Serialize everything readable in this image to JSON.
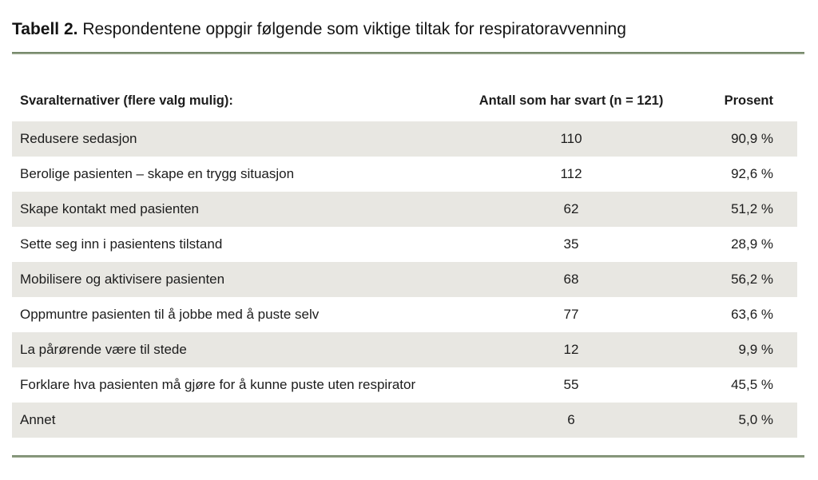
{
  "title": {
    "label": "Tabell 2.",
    "text": "Respondentene oppgir følgende som viktige tiltak for respiratoravvenning"
  },
  "table": {
    "columns": [
      "Svaralternativer (flere valg mulig):",
      "Antall som har svart (n = 121)",
      "Prosent"
    ],
    "rows": [
      {
        "alternativ": "Redusere sedasjon",
        "antall": "110",
        "prosent": "90,9 %"
      },
      {
        "alternativ": "Berolige pasienten – skape en trygg situasjon",
        "antall": "112",
        "prosent": "92,6 %"
      },
      {
        "alternativ": "Skape kontakt med pasienten",
        "antall": "62",
        "prosent": "51,2 %"
      },
      {
        "alternativ": "Sette seg inn i pasientens tilstand",
        "antall": "35",
        "prosent": "28,9 %"
      },
      {
        "alternativ": "Mobilisere og aktivisere pasienten",
        "antall": "68",
        "prosent": "56,2 %"
      },
      {
        "alternativ": "Oppmuntre pasienten til å jobbe med å puste selv",
        "antall": "77",
        "prosent": "63,6 %"
      },
      {
        "alternativ": "La pårørende være til stede",
        "antall": "12",
        "prosent": "9,9 %"
      },
      {
        "alternativ": "Forklare hva pasienten må gjøre for å kunne puste uten respirator",
        "antall": "55",
        "prosent": "45,5 %"
      },
      {
        "alternativ": "Annet",
        "antall": "6",
        "prosent": "5,0 %"
      }
    ]
  },
  "chart_data": {
    "type": "table",
    "title": "Tabell 2. Respondentene oppgir følgende som viktige tiltak for respiratoravvenning",
    "columns": [
      "Svaralternativer (flere valg mulig):",
      "Antall som har svart (n = 121)",
      "Prosent"
    ],
    "n_total": 121,
    "categories": [
      "Redusere sedasjon",
      "Berolige pasienten – skape en trygg situasjon",
      "Skape kontakt med pasienten",
      "Sette seg inn i pasientens tilstand",
      "Mobilisere og aktivisere pasienten",
      "Oppmuntre pasienten til å jobbe med å puste selv",
      "La pårørende være til stede",
      "Forklare hva pasienten må gjøre for å kunne puste uten respirator",
      "Annet"
    ],
    "antall_values": [
      110,
      112,
      62,
      35,
      68,
      77,
      12,
      55,
      6
    ],
    "prosent_values": [
      90.9,
      92.6,
      51.2,
      28.9,
      56.2,
      63.6,
      9.9,
      45.5,
      5.0
    ]
  },
  "colors": {
    "row_shade": "#e8e7e2",
    "rule_green": "#7a8f6f",
    "text": "#1c1c1c"
  }
}
